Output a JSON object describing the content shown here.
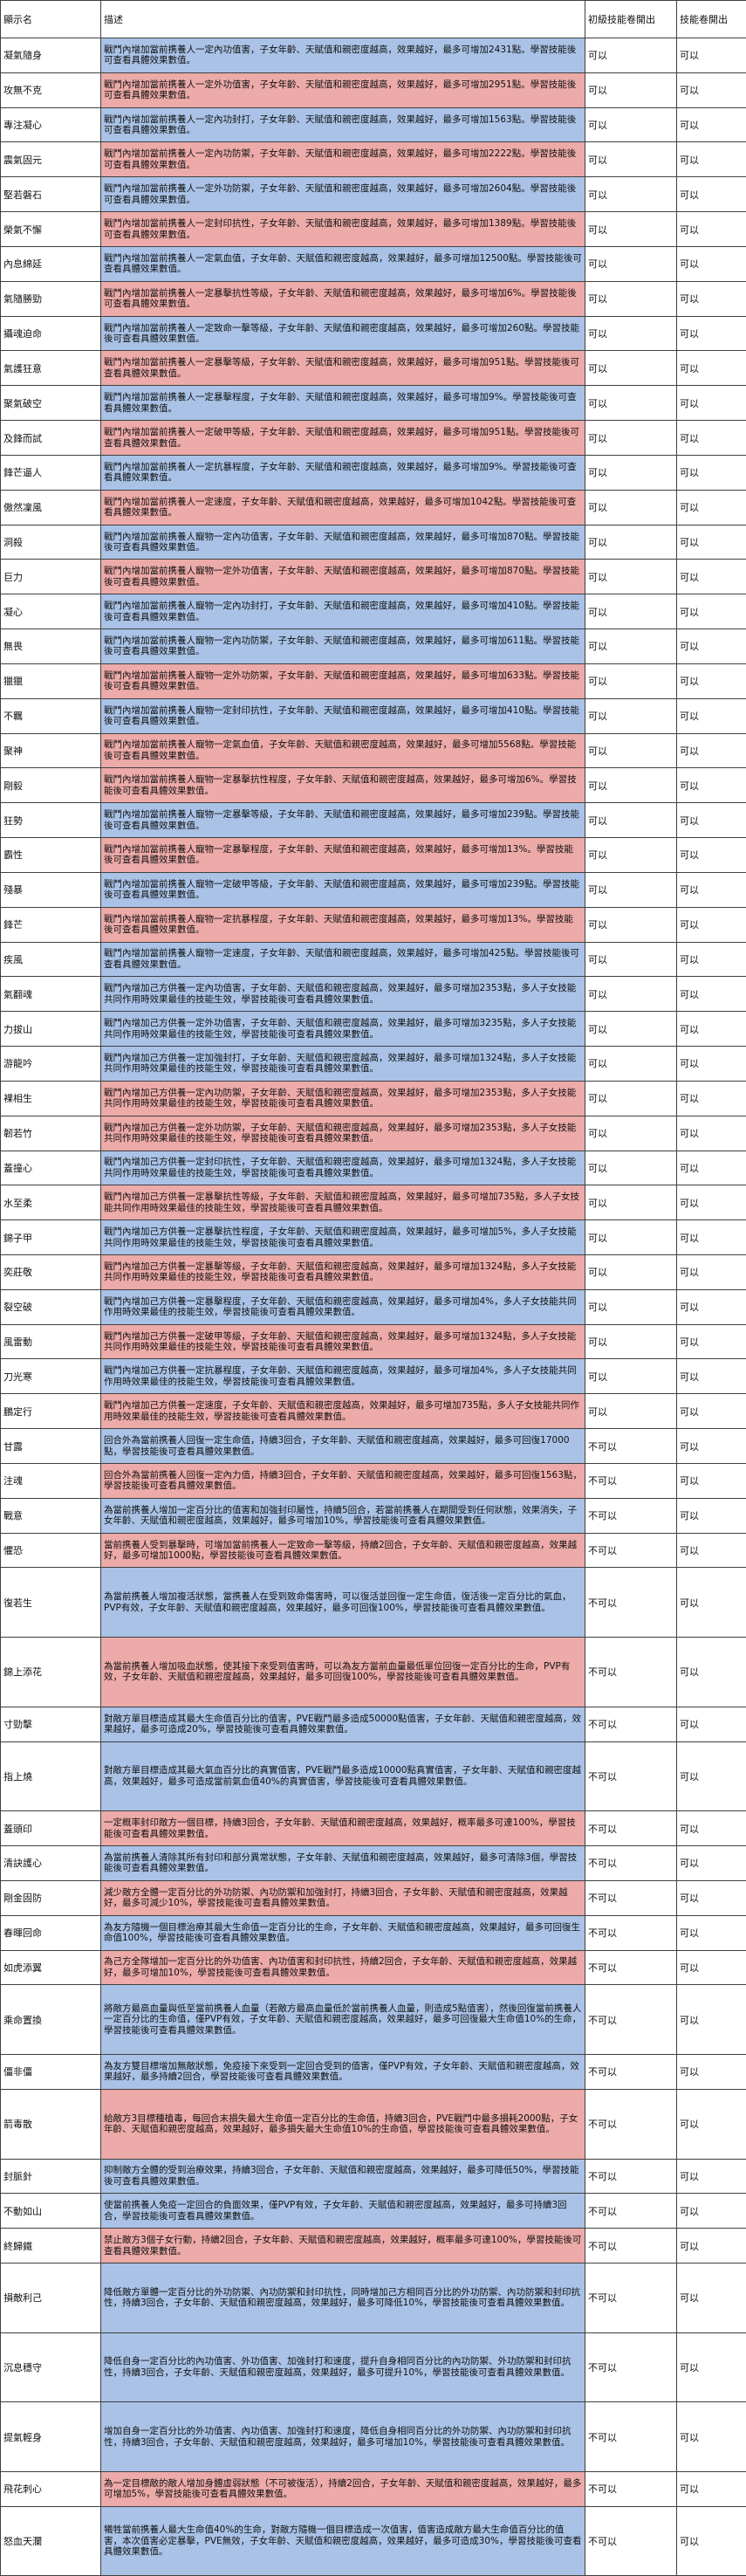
{
  "header": [
    "顯示名",
    "描述",
    "初級技能卷開出",
    "技能卷開出"
  ],
  "rows": [
    {
      "name": "凝氣隨身",
      "color": "blue",
      "desc": "戰鬥內增加當前携養人一定內功值害，子女年齡、天賦值和親密度越高，效果越好，最多可增加2431點。學習技能後可查看具體效果數值。",
      "a": "可以",
      "b": "可以"
    },
    {
      "name": "攻無不克",
      "color": "pink",
      "desc": "戰鬥內增加當前携養人一定外功值害，子女年齡、天賦值和親密度越高，效果越好，最多可增加2951點。學習技能後可查看具體效果數值。",
      "a": "可以",
      "b": "可以"
    },
    {
      "name": "專注凝心",
      "color": "blue",
      "desc": "戰鬥內增加當前携養人一定內功封打，子女年齡、天賦值和親密度越高，效果越好，最多可增加1563點。學習技能後可查看具體效果數值。",
      "a": "可以",
      "b": "可以"
    },
    {
      "name": "震氣固元",
      "color": "pink",
      "desc": "戰鬥內增加當前携養人一定內功防禦，子女年齡、天賦值和親密度越高，效果越好，最多可增加2222點。學習技能後可查看具體效果數值。",
      "a": "可以",
      "b": "可以"
    },
    {
      "name": "堅若磐石",
      "color": "blue",
      "desc": "戰鬥內增加當前携養人一定外功防禦，子女年齡、天賦值和親密度越高，效果越好，最多可增加2604點。學習技能後可查看具體效果數值。",
      "a": "可以",
      "b": "可以"
    },
    {
      "name": "榮氣不懈",
      "color": "pink",
      "desc": "戰鬥內增加當前携養人一定封印抗性，子女年齡、天賦值和親密度越高，效果越好，最多可增加1389點。學習技能後可查看具體效果數值。",
      "a": "可以",
      "b": "可以"
    },
    {
      "name": "內息綿延",
      "color": "blue",
      "desc": "戰鬥內增加當前携養人一定氣血值，子女年齡、天賦值和親密度越高，效果越好，最多可增加12500點。學習技能後可查看具體效果數值。",
      "a": "可以",
      "b": "可以"
    },
    {
      "name": "氣隨勝勁",
      "color": "pink",
      "desc": "戰鬥內增加當前携養人一定暴擊抗性等級，子女年齡、天賦值和親密度越高，效果越好，最多可增加6%。學習技能後可查看具體效果數值。",
      "a": "可以",
      "b": "可以"
    },
    {
      "name": "攝魂迫命",
      "color": "blue",
      "desc": "戰鬥內增加當前携養人一定致命一擊等級，子女年齡、天賦值和親密度越高，效果越好，最多可增加260點。學習技能後可查看具體效果數值。",
      "a": "可以",
      "b": "可以"
    },
    {
      "name": "氣護狂意",
      "color": "pink",
      "desc": "戰鬥內增加當前携養人一定暴擊等級，子女年齡、天賦值和親密度越高，效果越好，最多可增加951點。學習技能後可查看具體效果數值。",
      "a": "可以",
      "b": "可以"
    },
    {
      "name": "聚氣破空",
      "color": "blue",
      "desc": "戰鬥內增加當前携養人一定暴擊程度，子女年齡、天賦值和親密度越高，效果越好，最多可增加9%。學習技能後可查看具體效果數值。",
      "a": "可以",
      "b": "可以"
    },
    {
      "name": "及鋒而試",
      "color": "pink",
      "desc": "戰鬥內增加當前携養人一定破甲等級，子女年齡、天賦值和親密度越高，效果越好，最多可增加951點。學習技能後可查看具體效果數值。",
      "a": "可以",
      "b": "可以"
    },
    {
      "name": "鋒芒逼人",
      "color": "blue",
      "desc": "戰鬥內增加當前携養人一定抗暴程度，子女年齡、天賦值和親密度越高，效果越好，最多可增加9%。學習技能後可查看具體效果數值。",
      "a": "可以",
      "b": "可以"
    },
    {
      "name": "傲然凜風",
      "color": "pink",
      "desc": "戰鬥內增加當前携養人一定速度，子女年齡、天賦值和親密度越高，效果越好，最多可增加1042點。學習技能後可查看具體效果數值。",
      "a": "可以",
      "b": "可以"
    },
    {
      "name": "洞殺",
      "color": "blue",
      "desc": "戰鬥內增加當前携養人寵物一定內功值害，子女年齡、天賦值和親密度越高，效果越好，最多可增加870點。學習技能後可查看具體效果數值。",
      "a": "可以",
      "b": "可以"
    },
    {
      "name": "巨力",
      "color": "pink",
      "desc": "戰鬥內增加當前携養人寵物一定外功值害，子女年齡、天賦值和親密度越高，效果越好，最多可增加870點。學習技能後可查看具體效果數值。",
      "a": "可以",
      "b": "可以"
    },
    {
      "name": "凝心",
      "color": "blue",
      "desc": "戰鬥內增加當前携養人寵物一定內功封打，子女年齡、天賦值和親密度越高，效果越好，最多可增加410點。學習技能後可查看具體效果數值。",
      "a": "可以",
      "b": "可以"
    },
    {
      "name": "無畏",
      "color": "blue",
      "desc": "戰鬥內增加當前携養人寵物一定內功防禦，子女年齡、天賦值和親密度越高，效果越好，最多可增加611點。學習技能後可查看具體效果數值。",
      "a": "可以",
      "b": "可以"
    },
    {
      "name": "獵獵",
      "color": "pink",
      "desc": "戰鬥內增加當前携養人寵物一定外功防禦，子女年齡、天賦值和親密度越高，效果越好，最多可增加633點。學習技能後可查看具體效果數值。",
      "a": "可以",
      "b": "可以"
    },
    {
      "name": "不羈",
      "color": "blue",
      "desc": "戰鬥內增加當前携養人寵物一定封印抗性，子女年齡、天賦值和親密度越高，效果越好，最多可增加410點。學習技能後可查看具體效果數值。",
      "a": "可以",
      "b": "可以"
    },
    {
      "name": "聚神",
      "color": "pink",
      "desc": "戰鬥內增加當前携養人寵物一定氣血值，子女年齡、天賦值和親密度越高，效果越好，最多可增加5568點。學習技能後可查看具體效果數值。",
      "a": "可以",
      "b": "可以"
    },
    {
      "name": "剛毅",
      "color": "pink",
      "desc": "戰鬥內增加當前携養人寵物一定暴擊抗性程度，子女年齡、天賦值和親密度越高，效果越好，最多可增加6%。學習技能後可查看具體效果數值。",
      "a": "可以",
      "b": "可以"
    },
    {
      "name": "狂勢",
      "color": "blue",
      "desc": "戰鬥內增加當前携養人寵物一定暴擊等級，子女年齡、天賦值和親密度越高，效果越好，最多可增加239點。學習技能後可查看具體效果數值。",
      "a": "可以",
      "b": "可以"
    },
    {
      "name": "霸性",
      "color": "pink",
      "desc": "戰鬥內增加當前携養人寵物一定暴擊程度，子女年齡、天賦值和親密度越高，效果越好，最多可增加13%。學習技能後可查看具體效果數值。",
      "a": "可以",
      "b": "可以"
    },
    {
      "name": "殘暴",
      "color": "blue",
      "desc": "戰鬥內增加當前携養人寵物一定破甲等級，子女年齡、天賦值和親密度越高，效果越好，最多可增加239點。學習技能後可查看具體效果數值。",
      "a": "可以",
      "b": "可以"
    },
    {
      "name": "鋒芒",
      "color": "pink",
      "desc": "戰鬥內增加當前携養人寵物一定抗暴程度，子女年齡、天賦值和親密度越高，效果越好，最多可增加13%。學習技能後可查看具體效果數值。",
      "a": "可以",
      "b": "可以"
    },
    {
      "name": "疾風",
      "color": "blue",
      "desc": "戰鬥內增加當前携養人寵物一定速度，子女年齡、天賦值和親密度越高，效果越好，最多可增加425點。學習技能後可查看具體效果數值。",
      "a": "可以",
      "b": "可以"
    },
    {
      "name": "氣翻魂",
      "color": "blue",
      "desc": "戰鬥內增加己方供養一定內功值害，子女年齡、天賦值和親密度越高，效果越好，最多可增加2353點，多人子女技能共同作用時效果最佳的技能生效，學習技能後可查看具體效果數值。",
      "a": "可以",
      "b": "可以"
    },
    {
      "name": "力拔山",
      "color": "blue",
      "desc": "戰鬥內增加己方供養一定外功值害，子女年齡、天賦值和親密度越高，效果越好，最多可增加3235點，多人子女技能共同作用時效果最佳的技能生效，學習技能後可查看具體效果數值。",
      "a": "可以",
      "b": "可以"
    },
    {
      "name": "游龍吟",
      "color": "blue",
      "desc": "戰鬥內增加己方供養一定加強封打，子女年齡、天賦值和親密度越高，效果越好，最多可增加1324點，多人子女技能共同作用時效果最佳的技能生效，學習技能後可查看具體效果數值。",
      "a": "可以",
      "b": "可以"
    },
    {
      "name": "裸相生",
      "color": "pink",
      "desc": "戰鬥內增加己方供養一定內功防禦，子女年齡、天賦值和親密度越高，效果越好，最多可增加2353點，多人子女技能共同作用時效果最佳的技能生效，學習技能後可查看具體效果數值。",
      "a": "可以",
      "b": "可以"
    },
    {
      "name": "韌若竹",
      "color": "pink",
      "desc": "戰鬥內增加己方供養一定外功防禦，子女年齡、天賦值和親密度越高，效果越好，最多可增加2353點，多人子女技能共同作用時效果最佳的技能生效，學習技能後可查看具體效果數值。",
      "a": "可以",
      "b": "可以"
    },
    {
      "name": "蓋撞心",
      "color": "blue",
      "desc": "戰鬥內增加己方供養一定封印抗性，子女年齡、天賦值和親密度越高，效果越好，最多可增加1324點，多人子女技能共同作用時效果最佳的技能生效，學習技能後可查看具體效果數值。",
      "a": "可以",
      "b": "可以"
    },
    {
      "name": "水至柔",
      "color": "pink",
      "desc": "戰鬥內增加己方供養一定暴擊抗性等級，子女年齡、天賦值和親密度越高，效果越好，最多可增加735點，多人子女技能共同作用時效果最佳的技能生效，學習技能後可查看具體效果數值。",
      "a": "可以",
      "b": "可以"
    },
    {
      "name": "錦子甲",
      "color": "blue",
      "desc": "戰鬥內增加己方供養一定暴擊抗性程度，子女年齡、天賦值和親密度越高，效果越好，最多可增加5%，多人子女技能共同作用時效果最佳的技能生效，學習技能後可查看具體效果數值。",
      "a": "可以",
      "b": "可以"
    },
    {
      "name": "奕莊敬",
      "color": "pink",
      "desc": "戰鬥內增加己方供養一定暴擊等級，子女年齡、天賦值和親密度越高，效果越好，最多可增加1324點，多人子女技能共同作用時效果最佳的技能生效，學習技能後可查看具體效果數值。",
      "a": "可以",
      "b": "可以"
    },
    {
      "name": "裂空破",
      "color": "blue",
      "desc": "戰鬥內增加己方供養一定暴擊程度，子女年齡、天賦值和親密度越高，效果越好，最多可增加4%，多人子女技能共同作用時效果最佳的技能生效，學習技能後可查看具體效果數值。",
      "a": "可以",
      "b": "可以"
    },
    {
      "name": "風雷動",
      "color": "pink",
      "desc": "戰鬥內增加己方供養一定破甲等級，子女年齡、天賦值和親密度越高，效果越好，最多可增加1324點，多人子女技能共同作用時效果最佳的技能生效，學習技能後可查看具體效果數值。",
      "a": "可以",
      "b": "可以"
    },
    {
      "name": "刀光寒",
      "color": "blue",
      "desc": "戰鬥內增加己方供養一定抗暴程度，子女年齡、天賦值和親密度越高，效果越好，最多可增加4%，多人子女技能共同作用時效果最佳的技能生效，學習技能後可查看具體效果數值。",
      "a": "可以",
      "b": "可以"
    },
    {
      "name": "鵬定行",
      "color": "pink",
      "desc": "戰鬥內增加己方供養一定速度，子女年齡、天賦值和親密度越高，效果越好，最多可增加735點，多人子女技能共同作用時效果最佳的技能生效，學習技能後可查看具體效果數值。",
      "a": "可以",
      "b": "可以"
    },
    {
      "name": "甘露",
      "color": "blue",
      "desc": "回合外為當前携養人回復一定生命值，持續3回合，子女年齡、天賦值和親密度越高，效果越好，最多可回復17000點，學習技能後可查看具體效果數值。",
      "a": "不可以",
      "b": "可以"
    },
    {
      "name": "注魂",
      "color": "pink",
      "desc": "回合外為當前携養人回復一定內力值，持續3回合，子女年齡、天賦值和親密度越高，效果越好，最多可回復1563點，學習技能後可查看具體效果數值。",
      "a": "不可以",
      "b": "可以"
    },
    {
      "name": "戰意",
      "color": "blue",
      "desc": "為當前携養人增加一定百分比的值害和加強封印屬性，持續5回合，若當前携養人在期間受到任何狀態，效果消失，子女年齡、天賦值和親密度越高，效果越好，最多可增加10%，學習技能後可查看具體效果數值。",
      "a": "不可以",
      "b": "可以"
    },
    {
      "name": "懼恐",
      "color": "pink",
      "desc": "當前携養人受到暴擊時，可增加當前携養人一定致命一擊等級，持續2回合，子女年齡、天賦值和親密度越高，效果越好，最多可增加1000點，學習技能後可查看具體效果數值。",
      "a": "不可以",
      "b": "可以"
    },
    {
      "name": "復若生",
      "color": "blue",
      "desc": "為當前携養人增加複活狀態，當携養人在受到致命傷害時，可以復活並回復一定生命值，復活後一定百分比的氣血，PVP有效，子女年齡、天賦值和親密度越高，效果越好，最多可回復100%，學習技能後可查看具體效果數值。",
      "a": "不可以",
      "b": "可以"
    },
    {
      "name": "錦上添花",
      "color": "pink",
      "desc": "為當前携養人增加吸血狀態，使其接下來受到值害時，可以為友方當前血量最低單位回復一定百分比的生命，PVP有效，子女年齡、天賦值和親密度越高，效果越好，最多可回復100%，學習技能後可查看具體效果數值。",
      "a": "不可以",
      "b": "可以"
    },
    {
      "name": "寸勁擊",
      "color": "blue",
      "desc": "對敵方單目標造成其最大生命值百分比的值害，PVE戰鬥最多造成50000點值害，子女年齡、天賦值和親密度越高，效果越好，最多可造成20%，學習技能後可查看具體效果數值。",
      "a": "不可以",
      "b": "可以"
    },
    {
      "name": "指上燒",
      "color": "blue",
      "desc": "對敵方單目標造成其最大氣血百分比的真實值害，PVE戰鬥最多造成10000點真實值害，子女年齡、天賦值和親密度越高，效果越好，最多可造成當前氣血值40%的真實值害，學習技能後可查看具體效果數值。",
      "a": "不可以",
      "b": "可以"
    },
    {
      "name": "蓋頭印",
      "color": "pink",
      "desc": "一定概率封印敵方一個目標，持續3回合，子女年齡、天賦值和親密度越高，效果越好，概率最多可達100%，學習技能後可查看具體效果數值。",
      "a": "不可以",
      "b": "可以"
    },
    {
      "name": "清訣護心",
      "color": "blue",
      "desc": "為當前携養人清除其所有封印和部分異常狀態，子女年齡、天賦值和親密度越高，效果越好，最多可清除3個，學習技能後可查看具體效果數值。",
      "a": "不可以",
      "b": "可以"
    },
    {
      "name": "剛金固防",
      "color": "pink",
      "desc": "減少敵方全體一定百分比的外功防禦、內功防禦和加強封打，持續3回合，子女年齡、天賦值和親密度越高，效果越好，最多可減少10%，學習技能後可查看具體效果數值。",
      "a": "不可以",
      "b": "可以"
    },
    {
      "name": "春暉回命",
      "color": "blue",
      "desc": "為友方隨機一個目標治療其最大生命值一定百分比的生命，子女年齡、天賦值和親密度越高，效果越好，最多可回復生命值100%，學習技能後可查看具體效果數值。",
      "a": "不可以",
      "b": "可以"
    },
    {
      "name": "如虎添翼",
      "color": "pink",
      "desc": "為己方全隊增加一定百分比的外功值害、內功值害和封印抗性，持續2回合，子女年齡、天賦值和親密度越高，效果越好，最多可增加10%，學習技能後可查看具體效果數值。",
      "a": "不可以",
      "b": "可以"
    },
    {
      "name": "乘命置換",
      "color": "blue",
      "desc": "將敵方最高血量與低至當前携養人血量（若敵方最高血量低於當前携養人血量，則造成5點值害），然後回復當前携養人一定百分比的生命值，僅PVP有效，子女年齡、天賦值和親密度越高，效果越好，最多可回復最大生命值10%的生命，學習技能後可查看具體效果數值。",
      "a": "不可以",
      "b": "可以"
    },
    {
      "name": "僵非僵",
      "color": "blue",
      "desc": "為友方雙目標增加無敵狀態，免疫接下來受到一定回合受到的值害，僅PVP有效，子女年齡、天賦值和親密度越高，效果越好，最多持續2回合，學習技能後可查看具體效果數值。",
      "a": "不可以",
      "b": "可以"
    },
    {
      "name": "箭毒散",
      "color": "pink",
      "desc": "給敵方3目標種植毒，每回合末損失最大生命值一定百分比的生命值，持續3回合，PVE戰鬥中最多損耗2000點，子女年齡、天賦值和親密度越高，效果越好，最多損失最大生命值10%的生命值，學習技能後可查看具體效果數值。",
      "a": "不可以",
      "b": "可以"
    },
    {
      "name": "封脈針",
      "color": "blue",
      "desc": "抑制敵方全體的受到治療效果，持續3回合，子女年齡、天賦值和親密度越高，效果越好，最多可降低50%，學習技能後可查看具體效果數值。",
      "a": "不可以",
      "b": "可以"
    },
    {
      "name": "不動如山",
      "color": "blue",
      "desc": "使當前携養人免疫一定回合的負面效果，僅PVP有效，子女年齡、天賦值和親密度越高，效果越好，最多可持續3回合，學習技能後可查看具體效果數值。",
      "a": "不可以",
      "b": "可以"
    },
    {
      "name": "終歸鐵",
      "color": "pink",
      "desc": "禁止敵方3個子女行動，持續2回合，子女年齡、天賦值和親密度越高，效果越好，概率最多可達100%，學習技能後可查看具體效果數值。",
      "a": "不可以",
      "b": "可以"
    },
    {
      "name": "損敵利己",
      "color": "blue",
      "desc": "降低敵方單體一定百分比的外功防禦、內功防禦和封印抗性，同時增加己方相同百分比的外功防禦、內功防禦和封印抗性，持續3回合，子女年齡、天賦值和親密度越高，效果越好，最多可降低10%，學習技能後可查看具體效果數值。",
      "a": "不可以",
      "b": "可以"
    },
    {
      "name": "沉息穩守",
      "color": "blue",
      "desc": "降低自身一定百分比的內功值害、外功值害、加強封打和速度，提升自身相同百分比的內功防禦、外功防禦和封印抗性，持續3回合，子女年齡、天賦值和親密度越高，效果越好，最多可提升10%，學習技能後可查看具體效果數值。",
      "a": "不可以",
      "b": "可以"
    },
    {
      "name": "提氣輕身",
      "color": "blue",
      "desc": "增加自身一定百分比的外功值害、內功值害、加強封打和速度，降低自身相同百分比的外功防禦、內功防禦和封印抗性，持續3回合，子女年齡、天賦值和親密度越高，效果越好，最多可增加10%，學習技能後可查看具體效果數值。",
      "a": "不可以",
      "b": "可以"
    },
    {
      "name": "飛花刺心",
      "color": "pink",
      "desc": "為一定目標敵的敵人增加身體虛弱狀態（不可被復活），持續2回合，子女年齡、天賦值和親密度越高，效果越好，最多可增加5%，學習技能後可查看具體效果數值。",
      "a": "不可以",
      "b": "可以"
    },
    {
      "name": "怒血天瀾",
      "color": "blue",
      "desc": "犧牲當前携養人最大生命值40%的生命，對敵方隨機一個目標造成一次值害，值害造成敵方最大生命值百分比的值害，本次值害必定暴擊，PVE無效，子女年齡、天賦值和親密度越高，效果越好，最多可造成30%，學習技能後可查看具體效果數值。",
      "a": "不可以",
      "b": "可以"
    }
  ]
}
